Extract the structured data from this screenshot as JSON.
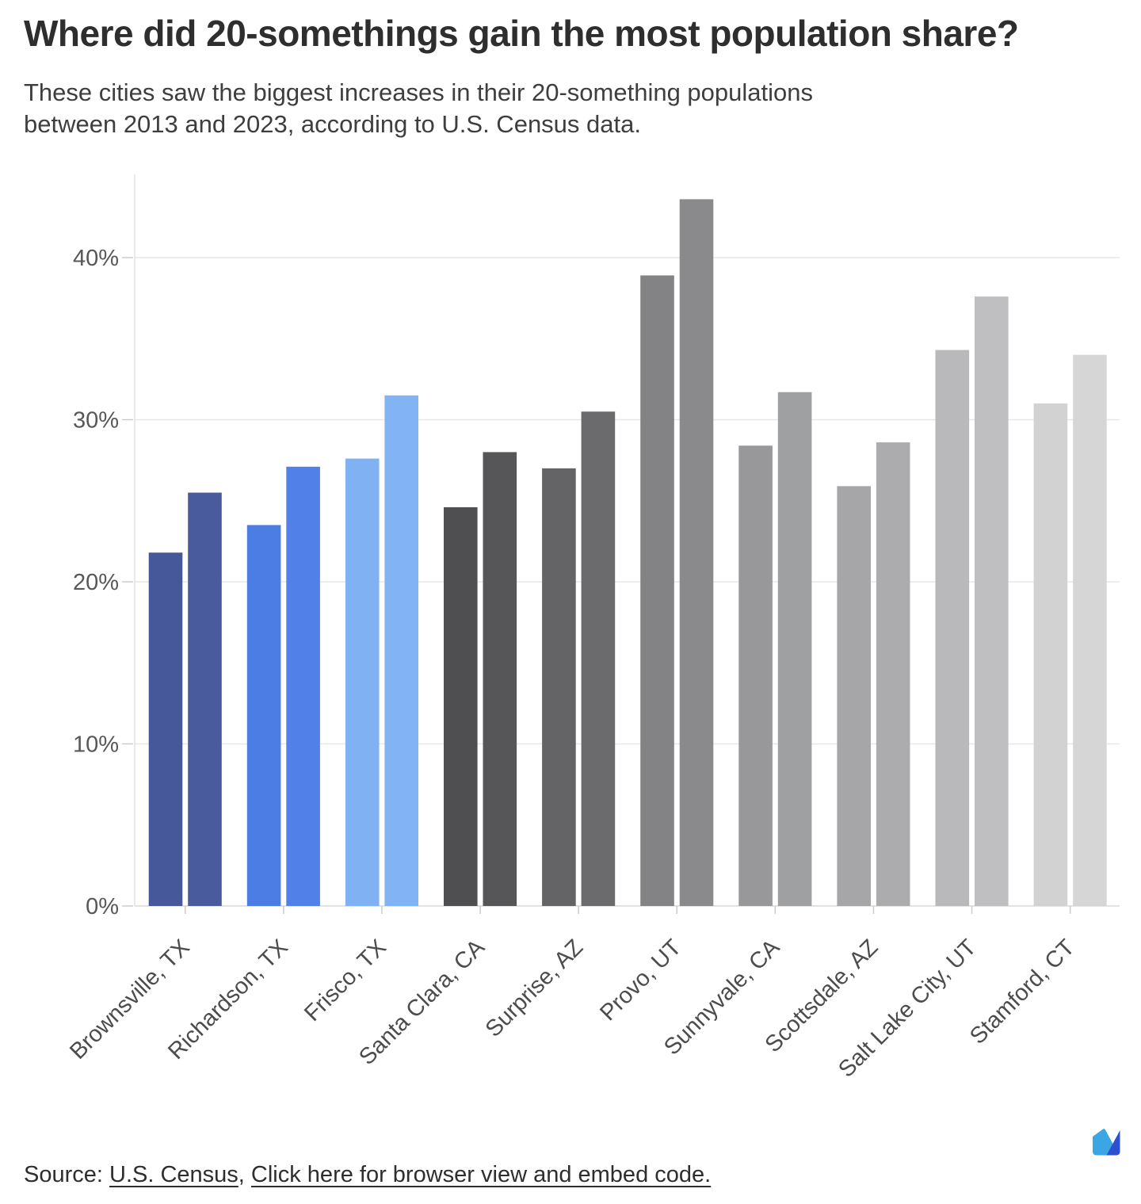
{
  "header": {
    "title": "Where did 20-somethings gain the most population share?",
    "subtitle_line1": "These cities saw the biggest increases in their 20-something populations",
    "subtitle_line2": "between 2013 and 2023, according to U.S. Census data."
  },
  "chart_data": {
    "type": "bar",
    "title": "Where did 20-somethings gain the most population share?",
    "categories": [
      "Brownsville, TX",
      "Richardson, TX",
      "Frisco, TX",
      "Santa Clara, CA",
      "Surprise, AZ",
      "Provo, UT",
      "Sunnyvale, CA",
      "Scottsdale, AZ",
      "Salt Lake City, UT",
      "Stamford, CT"
    ],
    "series": [
      {
        "name": "2013",
        "values": [
          21.8,
          23.5,
          27.6,
          24.6,
          27.0,
          38.9,
          28.4,
          25.9,
          34.3,
          31.0
        ],
        "colors": [
          "#47589A",
          "#4C7DE5",
          "#7FB1F3",
          "#4F4F51",
          "#646467",
          "#838385",
          "#98989A",
          "#A6A6A8",
          "#B9B9BB",
          "#D2D2D3"
        ]
      },
      {
        "name": "2023",
        "values": [
          25.5,
          27.1,
          31.5,
          28.0,
          30.5,
          43.6,
          31.7,
          28.6,
          37.6,
          34.0
        ],
        "colors": [
          "#4A5B9D",
          "#5080E8",
          "#82B4F5",
          "#565658",
          "#6B6B6D",
          "#8A8A8C",
          "#9FA0A2",
          "#ACACAE",
          "#BFBFC1",
          "#D6D6D7"
        ]
      }
    ],
    "ylabel": "",
    "xlabel": "",
    "ylim": [
      0,
      45
    ],
    "ytick_values": [
      0,
      10,
      20,
      30,
      40
    ],
    "ytick_labels": [
      "0%",
      "10%",
      "20%",
      "30%",
      "40%"
    ],
    "grid": true,
    "legend": "none"
  },
  "footer": {
    "source_prefix": "Source: ",
    "source_link_label": "U.S. Census",
    "source_separator": ", ",
    "embed_link_label": "Click here for browser view and embed code.",
    "logo_name": "sherwood-m-logo"
  },
  "colors": {
    "background": "#ffffff",
    "title_text": "#2e2e2e",
    "subtitle_text": "#3e3e3e",
    "grid_line": "#e7e7e7",
    "zero_line": "#d8d8d8",
    "axis_line": "#e2e2e2",
    "tick_mark": "#cccccc",
    "logo_left": "#3BA6E3",
    "logo_right": "#2B50D0"
  }
}
